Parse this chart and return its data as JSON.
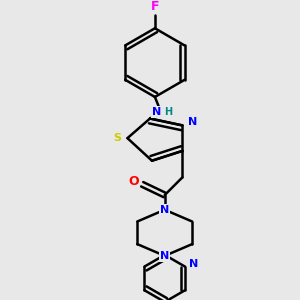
{
  "background_color": "#e8e8e8",
  "line_color": "#000000",
  "bond_width": 1.8,
  "atom_colors": {
    "F": "#ff00ff",
    "N": "#0000ff",
    "S": "#cccc00",
    "O": "#ff0000",
    "H": "#008888"
  },
  "figsize": [
    3.0,
    3.0
  ],
  "dpi": 100
}
